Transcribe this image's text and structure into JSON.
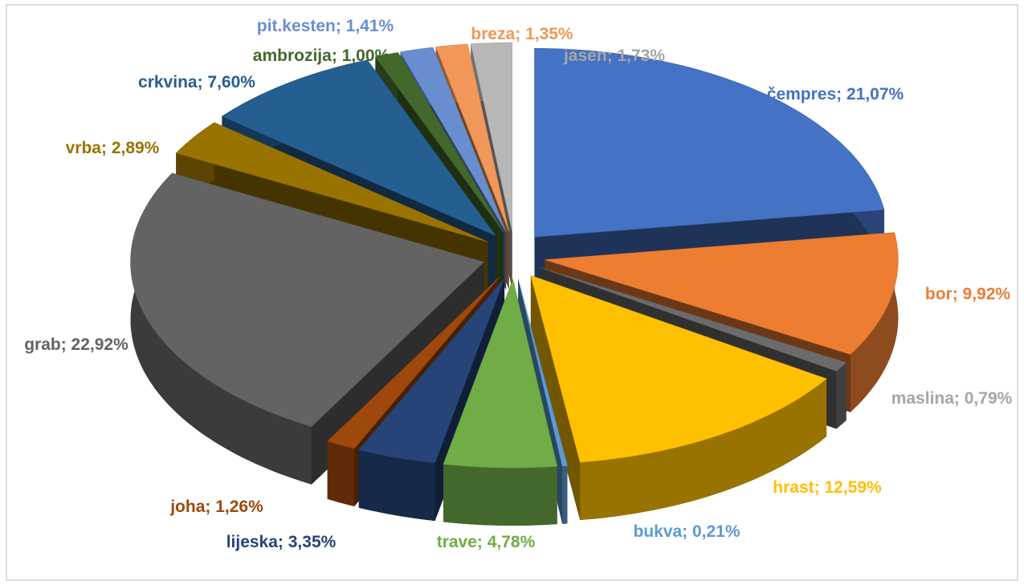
{
  "chart_data": {
    "type": "pie3d",
    "categories": [
      "čempres",
      "bor",
      "maslina",
      "hrast",
      "bukva",
      "trave",
      "lijeska",
      "joha",
      "grab",
      "vrba",
      "crkvina",
      "ambrozija",
      "pit.kesten",
      "breza",
      "jasen"
    ],
    "values": [
      21.07,
      9.92,
      0.79,
      12.59,
      0.21,
      4.78,
      3.35,
      1.26,
      22.92,
      2.89,
      7.6,
      1.0,
      1.41,
      1.35,
      1.73
    ],
    "value_labels": [
      "21,07%",
      "9,92%",
      "0,79%",
      "12,59%",
      "0,21%",
      "4,78%",
      "3,35%",
      "1,26%",
      "22,92%",
      "2,89%",
      "7,60%",
      "1,00%",
      "1,41%",
      "1,35%",
      "1,73%"
    ],
    "label_separator": "; ",
    "colors": [
      "#4472c4",
      "#ed7d31",
      "#6b6b6b",
      "#ffc000",
      "#5b9bd5",
      "#70ad47",
      "#264478",
      "#9e480e",
      "#636363",
      "#997300",
      "#255e91",
      "#43682b",
      "#698ed0",
      "#f1975a",
      "#b7b7b7"
    ],
    "label_colors": [
      "#4472c4",
      "#ed7d31",
      "#a5a5a5",
      "#ffc000",
      "#5b9bd5",
      "#70ad47",
      "#264478",
      "#9e480e",
      "#636363",
      "#997300",
      "#255e91",
      "#43682b",
      "#698ed0",
      "#f1975a",
      "#a5a5a5"
    ]
  }
}
